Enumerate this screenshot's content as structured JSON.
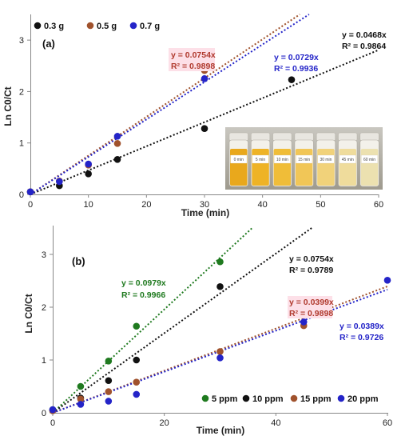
{
  "chart_data": [
    {
      "type": "scatter",
      "panel_label": "(a)",
      "xlabel": "Time (min)",
      "ylabel": "Ln C0/Ct",
      "xlim": [
        0,
        60
      ],
      "ylim": [
        0,
        3.5
      ],
      "xticks": [
        0,
        10,
        20,
        30,
        40,
        50,
        60
      ],
      "yticks": [
        0,
        1,
        2,
        3
      ],
      "grid": false,
      "legend_position": "top-left",
      "series": [
        {
          "name": "0.3 g",
          "color": "#111111",
          "x": [
            0,
            5,
            10,
            15,
            30,
            45
          ],
          "y": [
            0.05,
            0.17,
            0.4,
            0.68,
            1.28,
            2.23
          ],
          "fit": {
            "slope": 0.0468,
            "equation": "y = 0.0468x",
            "r2": "R² = 0.9864"
          }
        },
        {
          "name": "0.5 g",
          "color": "#a0522d",
          "x": [
            0,
            5,
            10,
            15,
            30
          ],
          "y": [
            0.05,
            0.26,
            0.57,
            0.99,
            2.41
          ],
          "fit": {
            "slope": 0.0754,
            "equation": "y = 0.0754x",
            "r2": "R² = 0.9898"
          }
        },
        {
          "name": "0.7 g",
          "color": "#2424c8",
          "x": [
            0,
            5,
            10,
            15,
            30
          ],
          "y": [
            0.05,
            0.25,
            0.59,
            1.13,
            2.25
          ],
          "fit": {
            "slope": 0.0729,
            "equation": "y = 0.0729x",
            "r2": "R² = 0.9936"
          }
        }
      ],
      "inset_photo": {
        "labels": [
          "0 min",
          "5 min",
          "10 min",
          "15 min",
          "30 min",
          "45 min",
          "60 min"
        ]
      }
    },
    {
      "type": "scatter",
      "panel_label": "(b)",
      "xlabel": "Time (min)",
      "ylabel": "Ln C0/Ct",
      "xlim": [
        0,
        60
      ],
      "ylim": [
        0,
        3.5
      ],
      "xticks": [
        0,
        20,
        40,
        60
      ],
      "yticks": [
        0,
        1,
        2,
        3
      ],
      "grid": false,
      "legend_position": "bottom-right",
      "series": [
        {
          "name": "5 ppm",
          "color": "#1f7a1f",
          "x": [
            0,
            5,
            10,
            15,
            30
          ],
          "y": [
            0.06,
            0.5,
            0.98,
            1.64,
            2.86
          ],
          "fit": {
            "slope": 0.0979,
            "equation": "y = 0.0979x",
            "r2": "R² = 0.9966"
          }
        },
        {
          "name": "10 ppm",
          "color": "#111111",
          "x": [
            0,
            5,
            10,
            15,
            30
          ],
          "y": [
            0.04,
            0.28,
            0.61,
            1.0,
            2.39
          ],
          "fit": {
            "slope": 0.0754,
            "equation": "y = 0.0754x",
            "r2": "R² = 0.9789"
          }
        },
        {
          "name": "15 ppm",
          "color": "#a0522d",
          "x": [
            0,
            5,
            10,
            15,
            30,
            45
          ],
          "y": [
            0.04,
            0.26,
            0.4,
            0.58,
            1.16,
            1.65
          ],
          "fit": {
            "slope": 0.0399,
            "equation": "y = 0.0399x",
            "r2": "R² = 0.9898"
          }
        },
        {
          "name": "20 ppm",
          "color": "#2424c8",
          "x": [
            0,
            5,
            10,
            15,
            30,
            45,
            60
          ],
          "y": [
            0.06,
            0.16,
            0.22,
            0.35,
            1.04,
            1.72,
            2.51
          ],
          "fit": {
            "slope": 0.0389,
            "equation": "y = 0.0389x",
            "r2": "R² = 0.9726"
          }
        }
      ]
    }
  ]
}
